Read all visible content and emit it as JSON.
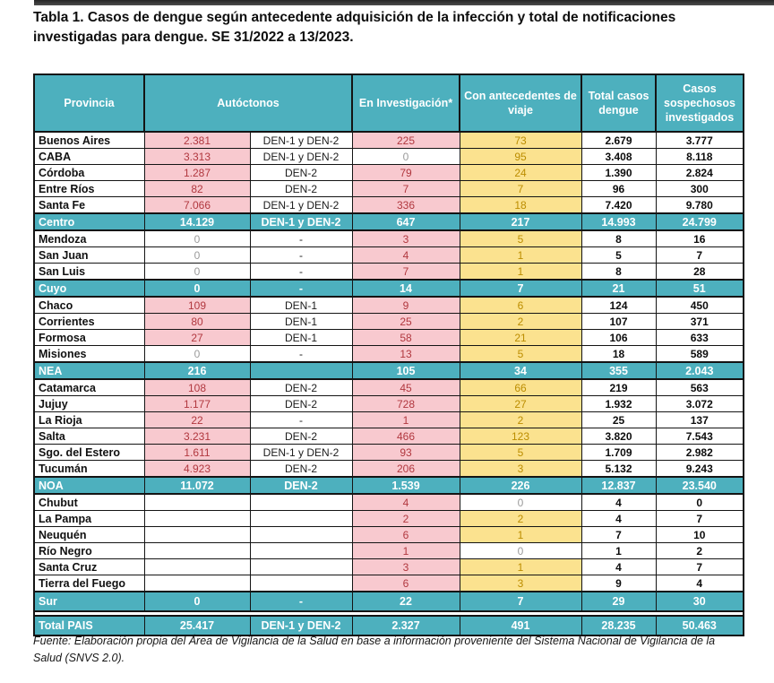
{
  "page": {
    "title": "Tabla 1. Casos de dengue según antecedente adquisición de la infección y total de notificaciones investigadas para dengue. SE 31/2022 a 13/2023.",
    "source_note": "Fuente: Elaboración propia del Área de Vigilancia de la Salud en base a información proveniente del Sistema Nacional de Vigilancia de la Salud (SNVS 2.0)."
  },
  "colors": {
    "header_teal": "#4DB0BE",
    "pink_bg": "#F8C9CF",
    "pink_text": "#B1383F",
    "yellow_bg": "#FBE28F",
    "yellow_text": "#BC8D00",
    "zero_gray_text": "#9B9B9B",
    "border_black": "#141414"
  },
  "table": {
    "columns": [
      "Provincia",
      "Autóctonos",
      "En Investigación*",
      "Con antecedentes de viaje",
      "Total casos dengue",
      "Casos sospechosos investigados"
    ],
    "rows": [
      {
        "type": "province",
        "name": "Buenos Aires",
        "cells": [
          {
            "v": "2.381",
            "s": "p"
          },
          {
            "v": "DEN-1 y DEN-2",
            "s": "d"
          },
          {
            "v": "225",
            "s": "p"
          },
          {
            "v": "73",
            "s": "y"
          },
          {
            "v": "2.679",
            "s": "t"
          },
          {
            "v": "3.777",
            "s": "t"
          }
        ]
      },
      {
        "type": "province",
        "name": "CABA",
        "cells": [
          {
            "v": "3.313",
            "s": "p"
          },
          {
            "v": "DEN-1 y DEN-2",
            "s": "d"
          },
          {
            "v": "0",
            "s": "z"
          },
          {
            "v": "95",
            "s": "y"
          },
          {
            "v": "3.408",
            "s": "t"
          },
          {
            "v": "8.118",
            "s": "t"
          }
        ]
      },
      {
        "type": "province",
        "name": "Córdoba",
        "cells": [
          {
            "v": "1.287",
            "s": "p"
          },
          {
            "v": "DEN-2",
            "s": "d"
          },
          {
            "v": "79",
            "s": "p"
          },
          {
            "v": "24",
            "s": "y"
          },
          {
            "v": "1.390",
            "s": "t"
          },
          {
            "v": "2.824",
            "s": "t"
          }
        ]
      },
      {
        "type": "province",
        "name": "Entre Ríos",
        "cells": [
          {
            "v": "82",
            "s": "p"
          },
          {
            "v": "DEN-2",
            "s": "d"
          },
          {
            "v": "7",
            "s": "p"
          },
          {
            "v": "7",
            "s": "y"
          },
          {
            "v": "96",
            "s": "t"
          },
          {
            "v": "300",
            "s": "t"
          }
        ]
      },
      {
        "type": "province",
        "name": "Santa Fe",
        "cells": [
          {
            "v": "7.066",
            "s": "p"
          },
          {
            "v": "DEN-1 y DEN-2",
            "s": "d"
          },
          {
            "v": "336",
            "s": "p"
          },
          {
            "v": "18",
            "s": "y"
          },
          {
            "v": "7.420",
            "s": "t"
          },
          {
            "v": "9.780",
            "s": "t"
          }
        ]
      },
      {
        "type": "group",
        "name": "Centro",
        "cells": [
          {
            "v": "14.129"
          },
          {
            "v": "DEN-1 y DEN-2"
          },
          {
            "v": "647"
          },
          {
            "v": "217"
          },
          {
            "v": "14.993"
          },
          {
            "v": "24.799"
          }
        ]
      },
      {
        "type": "province",
        "name": "Mendoza",
        "cells": [
          {
            "v": "0",
            "s": "z"
          },
          {
            "v": "-",
            "s": "d"
          },
          {
            "v": "3",
            "s": "p"
          },
          {
            "v": "5",
            "s": "y"
          },
          {
            "v": "8",
            "s": "t"
          },
          {
            "v": "16",
            "s": "t"
          }
        ]
      },
      {
        "type": "province",
        "name": "San Juan",
        "cells": [
          {
            "v": "0",
            "s": "z"
          },
          {
            "v": "-",
            "s": "d"
          },
          {
            "v": "4",
            "s": "p"
          },
          {
            "v": "1",
            "s": "y"
          },
          {
            "v": "5",
            "s": "t"
          },
          {
            "v": "7",
            "s": "t"
          }
        ]
      },
      {
        "type": "province",
        "name": "San Luis",
        "cells": [
          {
            "v": "0",
            "s": "z"
          },
          {
            "v": "-",
            "s": "d"
          },
          {
            "v": "7",
            "s": "p"
          },
          {
            "v": "1",
            "s": "y"
          },
          {
            "v": "8",
            "s": "t"
          },
          {
            "v": "28",
            "s": "t"
          }
        ]
      },
      {
        "type": "group",
        "name": "Cuyo",
        "cells": [
          {
            "v": "0"
          },
          {
            "v": "-"
          },
          {
            "v": "14"
          },
          {
            "v": "7"
          },
          {
            "v": "21"
          },
          {
            "v": "51"
          }
        ]
      },
      {
        "type": "province",
        "name": "Chaco",
        "cells": [
          {
            "v": "109",
            "s": "p"
          },
          {
            "v": "DEN-1",
            "s": "d"
          },
          {
            "v": "9",
            "s": "p"
          },
          {
            "v": "6",
            "s": "y"
          },
          {
            "v": "124",
            "s": "t"
          },
          {
            "v": "450",
            "s": "t"
          }
        ]
      },
      {
        "type": "province",
        "name": "Corrientes",
        "cells": [
          {
            "v": "80",
            "s": "p"
          },
          {
            "v": "DEN-1",
            "s": "d"
          },
          {
            "v": "25",
            "s": "p"
          },
          {
            "v": "2",
            "s": "y"
          },
          {
            "v": "107",
            "s": "t"
          },
          {
            "v": "371",
            "s": "t"
          }
        ]
      },
      {
        "type": "province",
        "name": "Formosa",
        "cells": [
          {
            "v": "27",
            "s": "p"
          },
          {
            "v": "DEN-1",
            "s": "d"
          },
          {
            "v": "58",
            "s": "p"
          },
          {
            "v": "21",
            "s": "y"
          },
          {
            "v": "106",
            "s": "t"
          },
          {
            "v": "633",
            "s": "t"
          }
        ]
      },
      {
        "type": "province",
        "name": "Misiones",
        "cells": [
          {
            "v": "0",
            "s": "z"
          },
          {
            "v": "-",
            "s": "d"
          },
          {
            "v": "13",
            "s": "p"
          },
          {
            "v": "5",
            "s": "y"
          },
          {
            "v": "18",
            "s": "t"
          },
          {
            "v": "589",
            "s": "t"
          }
        ]
      },
      {
        "type": "group",
        "name": "NEA",
        "cells": [
          {
            "v": "216"
          },
          {
            "v": ""
          },
          {
            "v": "105"
          },
          {
            "v": "34"
          },
          {
            "v": "355"
          },
          {
            "v": "2.043"
          }
        ]
      },
      {
        "type": "province",
        "name": "Catamarca",
        "cells": [
          {
            "v": "108",
            "s": "p"
          },
          {
            "v": "DEN-2",
            "s": "d"
          },
          {
            "v": "45",
            "s": "p"
          },
          {
            "v": "66",
            "s": "y"
          },
          {
            "v": "219",
            "s": "t"
          },
          {
            "v": "563",
            "s": "t"
          }
        ]
      },
      {
        "type": "province",
        "name": "Jujuy",
        "cells": [
          {
            "v": "1.177",
            "s": "p"
          },
          {
            "v": "DEN-2",
            "s": "d"
          },
          {
            "v": "728",
            "s": "p"
          },
          {
            "v": "27",
            "s": "y"
          },
          {
            "v": "1.932",
            "s": "t"
          },
          {
            "v": "3.072",
            "s": "t"
          }
        ]
      },
      {
        "type": "province",
        "name": "La Rioja",
        "cells": [
          {
            "v": "22",
            "s": "p"
          },
          {
            "v": "-",
            "s": "d"
          },
          {
            "v": "1",
            "s": "p"
          },
          {
            "v": "2",
            "s": "y"
          },
          {
            "v": "25",
            "s": "t"
          },
          {
            "v": "137",
            "s": "t"
          }
        ]
      },
      {
        "type": "province",
        "name": "Salta",
        "cells": [
          {
            "v": "3.231",
            "s": "p"
          },
          {
            "v": "DEN-2",
            "s": "d"
          },
          {
            "v": "466",
            "s": "p"
          },
          {
            "v": "123",
            "s": "y"
          },
          {
            "v": "3.820",
            "s": "t"
          },
          {
            "v": "7.543",
            "s": "t"
          }
        ]
      },
      {
        "type": "province",
        "name": "Sgo. del Estero",
        "cells": [
          {
            "v": "1.611",
            "s": "p"
          },
          {
            "v": "DEN-1 y DEN-2",
            "s": "d"
          },
          {
            "v": "93",
            "s": "p"
          },
          {
            "v": "5",
            "s": "y"
          },
          {
            "v": "1.709",
            "s": "t"
          },
          {
            "v": "2.982",
            "s": "t"
          }
        ]
      },
      {
        "type": "province",
        "name": "Tucumán",
        "cells": [
          {
            "v": "4.923",
            "s": "p"
          },
          {
            "v": "DEN-2",
            "s": "d"
          },
          {
            "v": "206",
            "s": "p"
          },
          {
            "v": "3",
            "s": "y"
          },
          {
            "v": "5.132",
            "s": "t"
          },
          {
            "v": "9.243",
            "s": "t"
          }
        ]
      },
      {
        "type": "group",
        "name": "NOA",
        "cells": [
          {
            "v": "11.072"
          },
          {
            "v": "DEN-2"
          },
          {
            "v": "1.539"
          },
          {
            "v": "226"
          },
          {
            "v": "12.837"
          },
          {
            "v": "23.540"
          }
        ]
      },
      {
        "type": "province",
        "name": "Chubut",
        "cells": [
          {
            "v": "",
            "s": "e"
          },
          {
            "v": "",
            "s": "e"
          },
          {
            "v": "4",
            "s": "p"
          },
          {
            "v": "0",
            "s": "z"
          },
          {
            "v": "4",
            "s": "t"
          },
          {
            "v": "0",
            "s": "t"
          }
        ]
      },
      {
        "type": "province",
        "name": "La Pampa",
        "cells": [
          {
            "v": "",
            "s": "e"
          },
          {
            "v": "",
            "s": "e"
          },
          {
            "v": "2",
            "s": "p"
          },
          {
            "v": "2",
            "s": "y"
          },
          {
            "v": "4",
            "s": "t"
          },
          {
            "v": "7",
            "s": "t"
          }
        ]
      },
      {
        "type": "province",
        "name": "Neuquén",
        "cells": [
          {
            "v": "",
            "s": "e"
          },
          {
            "v": "",
            "s": "e"
          },
          {
            "v": "6",
            "s": "p"
          },
          {
            "v": "1",
            "s": "y"
          },
          {
            "v": "7",
            "s": "t"
          },
          {
            "v": "10",
            "s": "t"
          }
        ]
      },
      {
        "type": "province",
        "name": "Río Negro",
        "cells": [
          {
            "v": "",
            "s": "e"
          },
          {
            "v": "",
            "s": "e"
          },
          {
            "v": "1",
            "s": "p"
          },
          {
            "v": "0",
            "s": "z"
          },
          {
            "v": "1",
            "s": "t"
          },
          {
            "v": "2",
            "s": "t"
          }
        ]
      },
      {
        "type": "province",
        "name": "Santa Cruz",
        "cells": [
          {
            "v": "",
            "s": "e"
          },
          {
            "v": "",
            "s": "e"
          },
          {
            "v": "3",
            "s": "p"
          },
          {
            "v": "1",
            "s": "y"
          },
          {
            "v": "4",
            "s": "t"
          },
          {
            "v": "7",
            "s": "t"
          }
        ]
      },
      {
        "type": "province",
        "name": "Tierra del Fuego",
        "cells": [
          {
            "v": "",
            "s": "e"
          },
          {
            "v": "",
            "s": "e"
          },
          {
            "v": "6",
            "s": "p"
          },
          {
            "v": "3",
            "s": "y"
          },
          {
            "v": "9",
            "s": "t"
          },
          {
            "v": "4",
            "s": "t"
          }
        ]
      },
      {
        "type": "group-tall",
        "name": "Sur",
        "cells": [
          {
            "v": "0"
          },
          {
            "v": "-"
          },
          {
            "v": "22"
          },
          {
            "v": "7"
          },
          {
            "v": "29"
          },
          {
            "v": "30"
          }
        ]
      },
      {
        "type": "spacer"
      },
      {
        "type": "group-tall",
        "name": "Total PAIS",
        "cells": [
          {
            "v": "25.417"
          },
          {
            "v": "DEN-1 y DEN-2"
          },
          {
            "v": "2.327"
          },
          {
            "v": "491"
          },
          {
            "v": "28.235"
          },
          {
            "v": "50.463"
          }
        ]
      }
    ]
  }
}
